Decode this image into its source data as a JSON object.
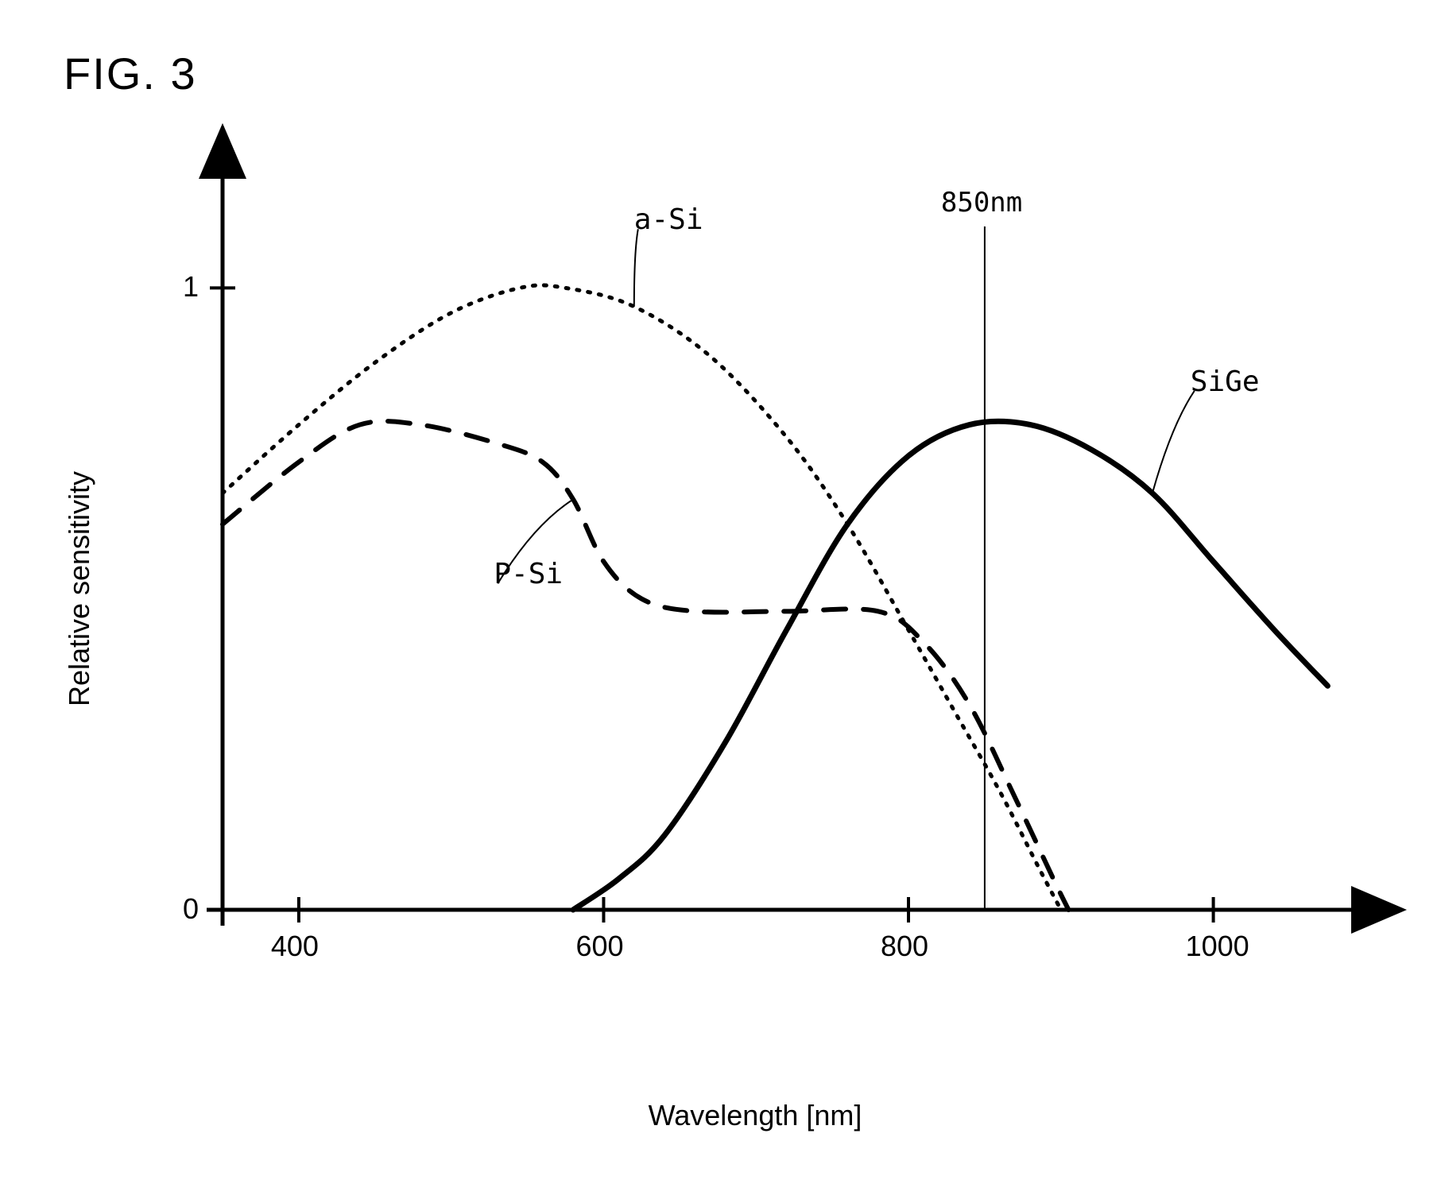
{
  "figure": {
    "title": "FIG. 3",
    "title_fontsize": 56
  },
  "chart": {
    "type": "line",
    "background_color": "#ffffff",
    "axis_color": "#000000",
    "axis_stroke_width": 5,
    "xlabel": "Wavelength [nm]",
    "ylabel": "Relative sensitivity",
    "label_fontsize": 36,
    "tick_fontsize": 36,
    "xlim": [
      350,
      1080
    ],
    "ylim": [
      0,
      1.15
    ],
    "xticks": [
      400,
      600,
      800,
      1000
    ],
    "yticks": [
      0,
      1
    ],
    "marker_line": {
      "x": 850,
      "label": "850nm",
      "color": "#000000",
      "stroke_width": 2
    },
    "series": [
      {
        "name": "a-Si",
        "label": "a-Si",
        "color": "#000000",
        "stroke_width": 5,
        "style": "dotted",
        "label_pos": {
          "x": 620,
          "y": 1.11
        },
        "points": [
          [
            350,
            0.67
          ],
          [
            400,
            0.78
          ],
          [
            450,
            0.88
          ],
          [
            500,
            0.96
          ],
          [
            545,
            1.0
          ],
          [
            575,
            1.0
          ],
          [
            620,
            0.97
          ],
          [
            670,
            0.89
          ],
          [
            720,
            0.76
          ],
          [
            760,
            0.62
          ],
          [
            800,
            0.45
          ],
          [
            830,
            0.32
          ],
          [
            860,
            0.19
          ],
          [
            885,
            0.07
          ],
          [
            900,
            0.0
          ]
        ]
      },
      {
        "name": "P-Si",
        "label": "P-Si",
        "color": "#000000",
        "stroke_width": 6,
        "style": "dashed",
        "dash_pattern": "28 22",
        "label_pos": {
          "x": 528,
          "y": 0.54
        },
        "points": [
          [
            350,
            0.62
          ],
          [
            400,
            0.72
          ],
          [
            440,
            0.78
          ],
          [
            480,
            0.78
          ],
          [
            530,
            0.75
          ],
          [
            560,
            0.72
          ],
          [
            580,
            0.66
          ],
          [
            600,
            0.56
          ],
          [
            625,
            0.5
          ],
          [
            660,
            0.48
          ],
          [
            720,
            0.48
          ],
          [
            780,
            0.48
          ],
          [
            810,
            0.43
          ],
          [
            840,
            0.33
          ],
          [
            870,
            0.18
          ],
          [
            895,
            0.05
          ],
          [
            905,
            0.0
          ]
        ]
      },
      {
        "name": "SiGe",
        "label": "SiGe",
        "color": "#000000",
        "stroke_width": 7,
        "style": "solid",
        "label_pos": {
          "x": 985,
          "y": 0.85
        },
        "points": [
          [
            580,
            0.0
          ],
          [
            610,
            0.05
          ],
          [
            640,
            0.12
          ],
          [
            680,
            0.27
          ],
          [
            720,
            0.45
          ],
          [
            760,
            0.62
          ],
          [
            800,
            0.73
          ],
          [
            840,
            0.78
          ],
          [
            880,
            0.78
          ],
          [
            920,
            0.74
          ],
          [
            960,
            0.67
          ],
          [
            1000,
            0.56
          ],
          [
            1040,
            0.45
          ],
          [
            1075,
            0.36
          ]
        ]
      }
    ]
  }
}
